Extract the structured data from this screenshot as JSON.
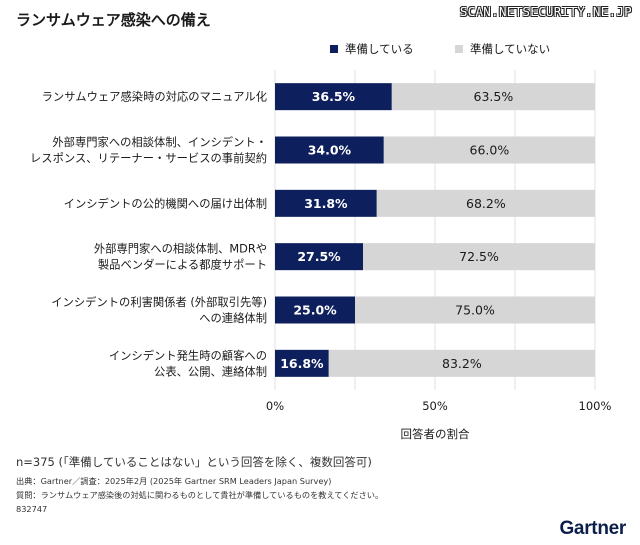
{
  "watermark": "SCAN.NETSECURITY.NE.JP",
  "logo": "Gartner",
  "chart_data": {
    "type": "bar",
    "orientation": "horizontal",
    "stacked": true,
    "title": "ランサムウェア感染への備え",
    "xlabel": "回答者の割合",
    "ylabel": "",
    "xlim": [
      0,
      100
    ],
    "xticks": [
      "0%",
      "50%",
      "100%"
    ],
    "legend_position": "top-right",
    "categories": [
      [
        "ランサムウェア感染時の対応のマニュアル化"
      ],
      [
        "外部専門家への相談体制、インシデント・",
        "レスポンス、リテーナー・サービスの事前契約"
      ],
      [
        "インシデントの公的機関への届け出体制"
      ],
      [
        "外部専門家への相談体制、MDRや",
        "製品ベンダーによる都度サポート"
      ],
      [
        "インシデントの利害関係者 (外部取引先等)",
        "への連絡体制"
      ],
      [
        "インシデント発生時の顧客への",
        "公表、公開、連絡体制"
      ]
    ],
    "series": [
      {
        "name": "準備している",
        "color": "#0d1f5c",
        "values": [
          36.5,
          34.0,
          31.8,
          27.5,
          25.0,
          16.8
        ],
        "labels": [
          "36.5%",
          "34.0%",
          "31.8%",
          "27.5%",
          "25.0%",
          "16.8%"
        ]
      },
      {
        "name": "準備していない",
        "color": "#d6d6d6",
        "values": [
          63.5,
          66.0,
          68.2,
          72.5,
          75.0,
          83.2
        ],
        "labels": [
          "63.5%",
          "66.0%",
          "68.2%",
          "72.5%",
          "75.0%",
          "83.2%"
        ]
      }
    ]
  },
  "notes": {
    "sample": "n=375 (「準備していることはない」という回答を除く、複数回答可)",
    "source": "出典：Gartner／調査：2025年2月 (2025年 Gartner SRM Leaders Japan Survey)",
    "question": "質問：ランサムウェア感染後の対処に関わるものとして貴社が準備しているものを教えてください。",
    "id": "832747"
  }
}
